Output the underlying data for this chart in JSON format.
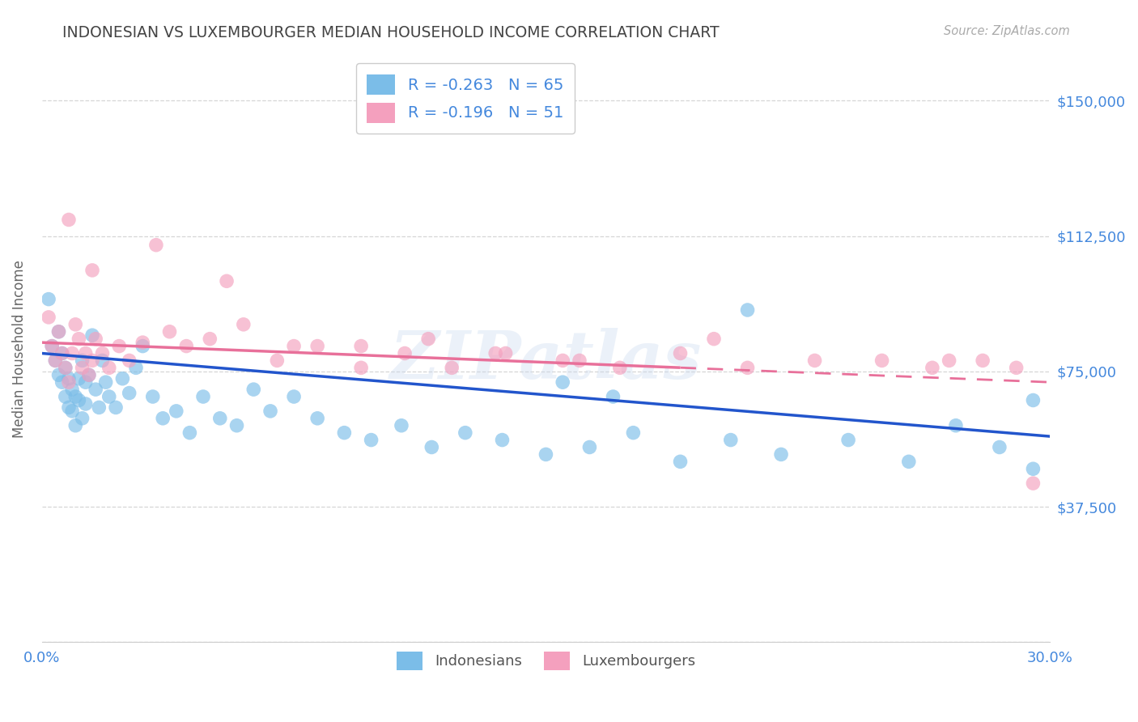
{
  "title": "INDONESIAN VS LUXEMBOURGER MEDIAN HOUSEHOLD INCOME CORRELATION CHART",
  "source": "Source: ZipAtlas.com",
  "ylabel": "Median Household Income",
  "watermark": "ZIPatlas",
  "xlim": [
    0.0,
    0.3
  ],
  "ylim": [
    0,
    162500
  ],
  "yticks": [
    0,
    37500,
    75000,
    112500,
    150000
  ],
  "ytick_labels": [
    "",
    "$37,500",
    "$75,000",
    "$112,500",
    "$150,000"
  ],
  "indonesian_color": "#7bbde8",
  "luxembourger_color": "#f4a0be",
  "trend_blue": "#2255cc",
  "trend_pink": "#e8709a",
  "R_indonesian": -0.263,
  "N_indonesian": 65,
  "R_luxembourger": -0.196,
  "N_luxembourger": 51,
  "background_color": "#ffffff",
  "grid_color": "#cccccc",
  "title_color": "#444444",
  "axis_label_color": "#666666",
  "tick_label_color": "#4488dd",
  "blue_trend_y0": 80000,
  "blue_trend_y1": 57000,
  "pink_trend_y0": 83000,
  "pink_trend_y1": 72000,
  "indonesian_x": [
    0.002,
    0.003,
    0.004,
    0.005,
    0.005,
    0.006,
    0.006,
    0.007,
    0.007,
    0.008,
    0.008,
    0.009,
    0.009,
    0.01,
    0.01,
    0.011,
    0.011,
    0.012,
    0.012,
    0.013,
    0.013,
    0.014,
    0.015,
    0.016,
    0.017,
    0.018,
    0.019,
    0.02,
    0.022,
    0.024,
    0.026,
    0.028,
    0.03,
    0.033,
    0.036,
    0.04,
    0.044,
    0.048,
    0.053,
    0.058,
    0.063,
    0.068,
    0.075,
    0.082,
    0.09,
    0.098,
    0.107,
    0.116,
    0.126,
    0.137,
    0.15,
    0.163,
    0.176,
    0.19,
    0.205,
    0.22,
    0.24,
    0.258,
    0.272,
    0.285,
    0.21,
    0.155,
    0.17,
    0.295,
    0.295
  ],
  "indonesian_y": [
    95000,
    82000,
    78000,
    86000,
    74000,
    80000,
    72000,
    76000,
    68000,
    73000,
    65000,
    70000,
    64000,
    68000,
    60000,
    73000,
    67000,
    78000,
    62000,
    72000,
    66000,
    74000,
    85000,
    70000,
    65000,
    78000,
    72000,
    68000,
    65000,
    73000,
    69000,
    76000,
    82000,
    68000,
    62000,
    64000,
    58000,
    68000,
    62000,
    60000,
    70000,
    64000,
    68000,
    62000,
    58000,
    56000,
    60000,
    54000,
    58000,
    56000,
    52000,
    54000,
    58000,
    50000,
    56000,
    52000,
    56000,
    50000,
    60000,
    54000,
    92000,
    72000,
    68000,
    67000,
    48000
  ],
  "luxembourger_x": [
    0.002,
    0.003,
    0.004,
    0.005,
    0.006,
    0.007,
    0.008,
    0.009,
    0.01,
    0.011,
    0.012,
    0.013,
    0.014,
    0.015,
    0.016,
    0.018,
    0.02,
    0.023,
    0.026,
    0.03,
    0.034,
    0.038,
    0.043,
    0.05,
    0.06,
    0.07,
    0.082,
    0.095,
    0.108,
    0.122,
    0.138,
    0.155,
    0.172,
    0.19,
    0.21,
    0.23,
    0.25,
    0.265,
    0.28,
    0.29,
    0.008,
    0.015,
    0.055,
    0.075,
    0.095,
    0.115,
    0.135,
    0.16,
    0.2,
    0.27,
    0.295
  ],
  "luxembourger_y": [
    90000,
    82000,
    78000,
    86000,
    80000,
    76000,
    72000,
    80000,
    88000,
    84000,
    76000,
    80000,
    74000,
    78000,
    84000,
    80000,
    76000,
    82000,
    78000,
    83000,
    110000,
    86000,
    82000,
    84000,
    88000,
    78000,
    82000,
    76000,
    80000,
    76000,
    80000,
    78000,
    76000,
    80000,
    76000,
    78000,
    78000,
    76000,
    78000,
    76000,
    117000,
    103000,
    100000,
    82000,
    82000,
    84000,
    80000,
    78000,
    84000,
    78000,
    44000
  ]
}
